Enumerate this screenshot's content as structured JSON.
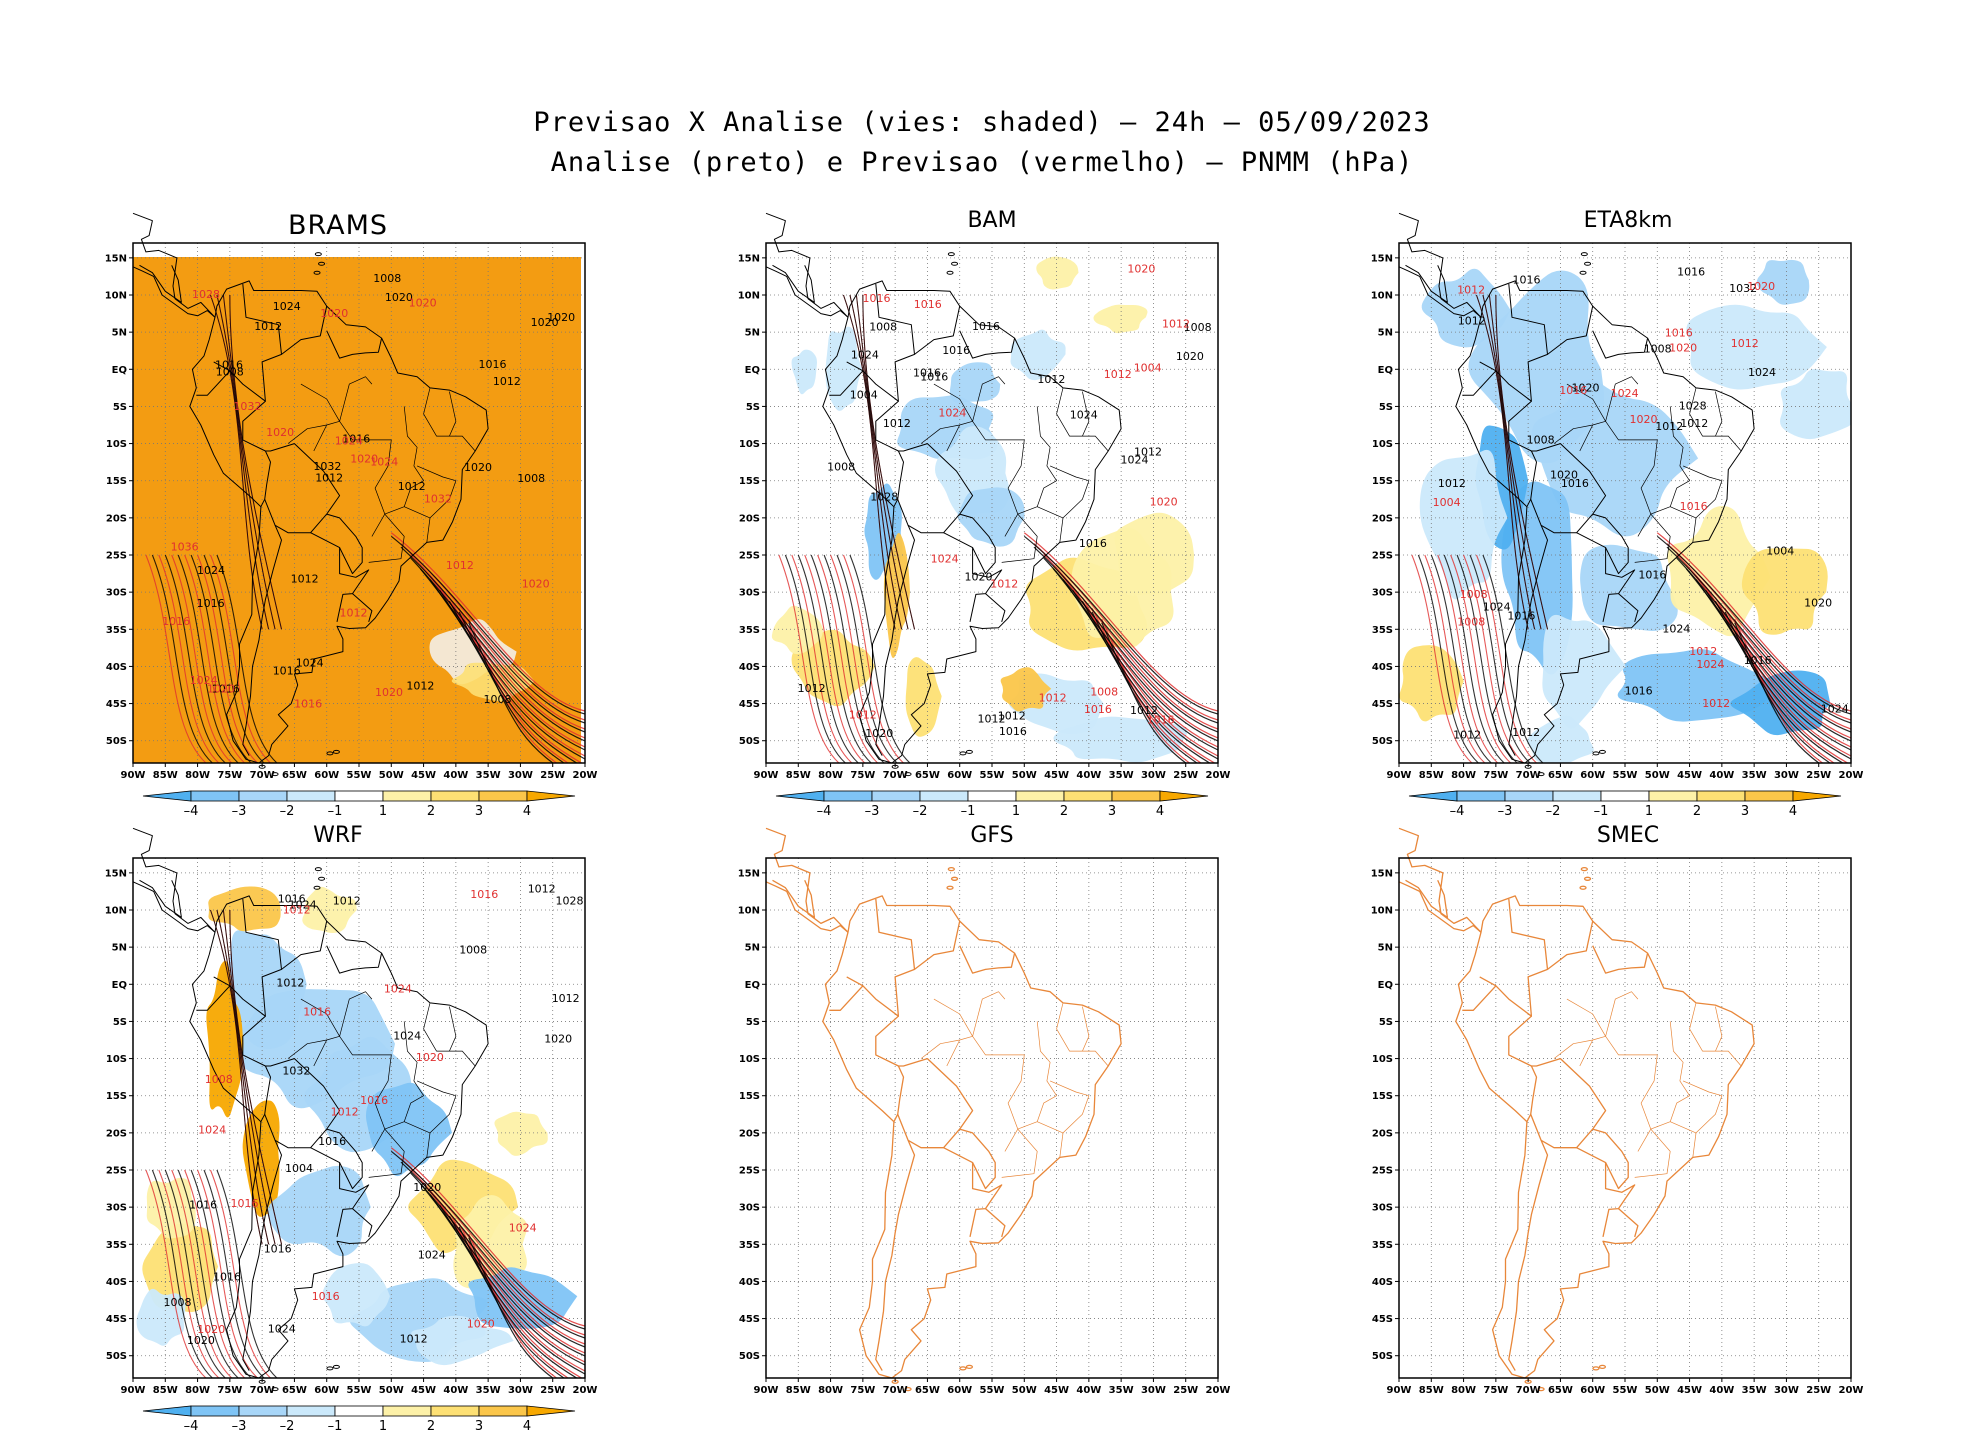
{
  "header": {
    "title_line1": "Previsao X Analise (vies: shaded) – 24h – 05/09/2023",
    "title_line2": "Analise (preto) e Previsao (vermelho) – PNMM (hPa)"
  },
  "axes": {
    "lat_labels": [
      "15N",
      "10N",
      "5N",
      "EQ",
      "5S",
      "10S",
      "15S",
      "20S",
      "25S",
      "30S",
      "35S",
      "40S",
      "45S",
      "50S"
    ],
    "lon_labels": [
      "90W",
      "85W",
      "80W",
      "75W",
      "70W",
      "65W",
      "60W",
      "55W",
      "50W",
      "45W",
      "40W",
      "35W",
      "30W",
      "25W",
      "20W"
    ]
  },
  "colorbar": {
    "labels": [
      "-4",
      "-3",
      "-2",
      "-1",
      "1",
      "2",
      "3",
      "4"
    ],
    "colors": [
      "#4fb0f0",
      "#7fc4f5",
      "#a8d6f8",
      "#cbe9fb",
      "#ffffff",
      "#fdf1a8",
      "#fde074",
      "#fbc64a",
      "#f7a800"
    ]
  },
  "colors": {
    "analysis_contour": "#000000",
    "forecast_contour": "#e03030",
    "coastline_empty": "#e8873a",
    "brams_fill": "#f39c12"
  },
  "panels": [
    {
      "id": "brams",
      "title": "BRAMS",
      "black_labels": [
        "1012",
        "1008",
        "1012",
        "1008",
        "1016",
        "1008",
        "1012",
        "1016",
        "1012",
        "1020",
        "1016",
        "1024",
        "1016",
        "1020",
        "1024",
        "1020",
        "1016",
        "1012",
        "1008",
        "1012",
        "1024",
        "1032",
        "1020",
        "1016"
      ],
      "red_labels": [
        "1020",
        "1020",
        "1020",
        "1016",
        "1012",
        "1016",
        "1012",
        "1020",
        "1024",
        "1028",
        "1032",
        "1036",
        "1024",
        "1020",
        "1024",
        "1020",
        "1032",
        "1020"
      ]
    },
    {
      "id": "bam",
      "title": "BAM",
      "black_labels": [
        "1016",
        "1012",
        "1012",
        "1012",
        "1016",
        "1012",
        "1012",
        "1020",
        "1020",
        "1024",
        "1028",
        "1020",
        "1016",
        "1008",
        "1004",
        "1012",
        "1008",
        "1016",
        "1024",
        "1012",
        "1024",
        "1016",
        "1016",
        "1008"
      ],
      "red_labels": [
        "1012",
        "1008",
        "1012",
        "1016",
        "1020",
        "1012",
        "1016",
        "1024",
        "1020",
        "1024",
        "1012",
        "1004",
        "1016",
        "1012",
        "1016"
      ]
    },
    {
      "id": "eta8km",
      "title": "ETA8km",
      "black_labels": [
        "1016",
        "1012",
        "1012",
        "1012",
        "1016",
        "1020",
        "1016",
        "1012",
        "1016",
        "1020",
        "1024",
        "1028",
        "1032",
        "1016",
        "1020",
        "1024",
        "1008",
        "1024",
        "1004",
        "1012",
        "1008",
        "1016",
        "1024",
        "1016",
        "1012"
      ],
      "red_labels": [
        "1012",
        "1008",
        "1012",
        "1012",
        "1016",
        "1020",
        "1016",
        "1024",
        "1016",
        "1020",
        "1020",
        "1024",
        "1004",
        "1012",
        "1008"
      ]
    },
    {
      "id": "wrf",
      "title": "WRF",
      "black_labels": [
        "1016",
        "1012",
        "1016",
        "1012",
        "1020",
        "1016",
        "1024",
        "1012",
        "1020",
        "1024",
        "1028",
        "1032",
        "1020",
        "1024",
        "1008",
        "1012",
        "1004",
        "1012",
        "1008",
        "1016",
        "1024",
        "1016"
      ],
      "red_labels": [
        "1016",
        "1012",
        "1016",
        "1020",
        "1016",
        "1024",
        "1020",
        "1024",
        "1016",
        "1024",
        "1008",
        "1016",
        "1012",
        "1020"
      ]
    },
    {
      "id": "gfs",
      "title": "GFS",
      "black_labels": [],
      "red_labels": []
    },
    {
      "id": "smec",
      "title": "SMEC",
      "black_labels": [],
      "red_labels": []
    }
  ]
}
